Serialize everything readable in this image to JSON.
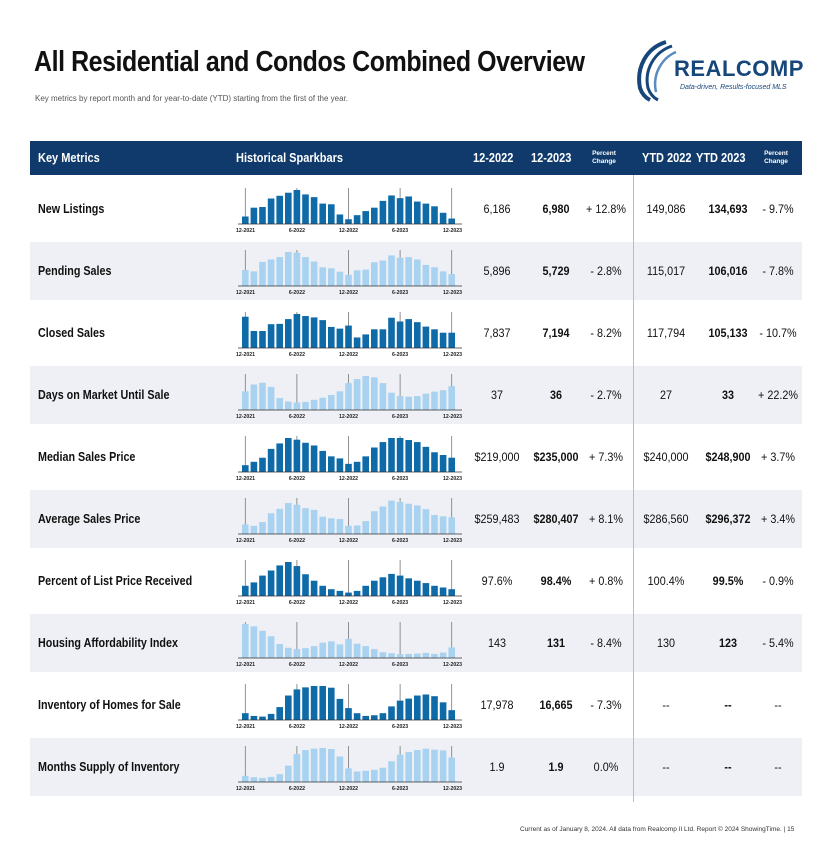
{
  "title": "All Residential and Condos Combined Overview",
  "subtitle": "Key metrics by report month and for year-to-date (YTD) starting from the first of the year.",
  "logo": {
    "word": "REALCOMP",
    "tagline": "Data-driven, Results-focused MLS"
  },
  "header": {
    "key_metrics": "Key Metrics",
    "sparkbars": "Historical Sparkbars",
    "col1": "12-2022",
    "col2": "12-2023",
    "pct1_a": "Percent",
    "pct1_b": "Change",
    "ytd1": "YTD 2022",
    "ytd2": "YTD 2023",
    "pct2_a": "Percent",
    "pct2_b": "Change"
  },
  "tick_labels": [
    "12-2021",
    "6-2022",
    "12-2022",
    "6-2023",
    "12-2023"
  ],
  "colors": {
    "dark_bar": "#0f6aa8",
    "light_bar": "#a8d2f0",
    "header_bg": "#0f3a6b",
    "marker_line": "#777777"
  },
  "rows": [
    {
      "label": "New Listings",
      "v2022": "6,186",
      "v2023": "6,980",
      "pct": "+ 12.8%",
      "ytd2022": "149,086",
      "ytd2023": "134,693",
      "ytd_pct": "- 9.7%",
      "bar_style": "dark",
      "bars": [
        0.22,
        0.48,
        0.5,
        0.75,
        0.83,
        0.92,
        1.0,
        0.87,
        0.79,
        0.6,
        0.58,
        0.28,
        0.14,
        0.26,
        0.38,
        0.48,
        0.68,
        0.84,
        0.76,
        0.81,
        0.66,
        0.6,
        0.52,
        0.33,
        0.16
      ]
    },
    {
      "label": "Pending Sales",
      "v2022": "5,896",
      "v2023": "5,729",
      "pct": "- 2.8%",
      "ytd2022": "115,017",
      "ytd2023": "106,016",
      "ytd_pct": "- 7.8%",
      "bar_style": "light",
      "bars": [
        0.47,
        0.43,
        0.71,
        0.78,
        0.85,
        1.0,
        0.98,
        0.85,
        0.72,
        0.55,
        0.52,
        0.42,
        0.33,
        0.46,
        0.48,
        0.7,
        0.75,
        0.9,
        0.83,
        0.85,
        0.78,
        0.62,
        0.55,
        0.43,
        0.35
      ]
    },
    {
      "label": "Closed Sales",
      "v2022": "7,837",
      "v2023": "7,194",
      "pct": "- 8.2%",
      "ytd2022": "117,794",
      "ytd2023": "105,133",
      "ytd_pct": "- 10.7%",
      "bar_style": "dark",
      "bars": [
        0.92,
        0.5,
        0.5,
        0.7,
        0.71,
        0.85,
        1.0,
        0.94,
        0.9,
        0.82,
        0.62,
        0.57,
        0.66,
        0.31,
        0.4,
        0.55,
        0.55,
        0.89,
        0.78,
        0.85,
        0.76,
        0.63,
        0.55,
        0.45,
        0.45
      ]
    },
    {
      "label": "Days on Market Until Sale",
      "v2022": "37",
      "v2023": "36",
      "pct": "- 2.7%",
      "ytd2022": "27",
      "ytd2023": "33",
      "ytd_pct": "+ 22.2%",
      "bar_style": "light",
      "bars": [
        0.55,
        0.75,
        0.8,
        0.68,
        0.35,
        0.25,
        0.22,
        0.24,
        0.3,
        0.36,
        0.44,
        0.55,
        0.79,
        0.91,
        1.0,
        0.96,
        0.79,
        0.51,
        0.41,
        0.39,
        0.41,
        0.48,
        0.54,
        0.58,
        0.7
      ]
    },
    {
      "label": "Median Sales Price",
      "v2022": "$219,000",
      "v2023": "$235,000",
      "pct": "+ 7.3%",
      "ytd2022": "$240,000",
      "ytd2023": "$248,900",
      "ytd_pct": "+ 3.7%",
      "bar_style": "dark",
      "bars": [
        0.2,
        0.3,
        0.42,
        0.68,
        0.84,
        1.0,
        0.95,
        0.86,
        0.78,
        0.62,
        0.46,
        0.4,
        0.24,
        0.3,
        0.46,
        0.72,
        0.88,
        1.0,
        1.0,
        0.94,
        0.88,
        0.74,
        0.58,
        0.5,
        0.42
      ]
    },
    {
      "label": "Average Sales Price",
      "v2022": "$259,483",
      "v2023": "$280,407",
      "pct": "+ 8.1%",
      "ytd2022": "$286,560",
      "ytd2023": "$296,372",
      "ytd_pct": "+ 3.4%",
      "bar_style": "light",
      "bars": [
        0.28,
        0.24,
        0.35,
        0.61,
        0.74,
        0.91,
        0.86,
        0.76,
        0.71,
        0.51,
        0.46,
        0.44,
        0.24,
        0.25,
        0.38,
        0.67,
        0.81,
        0.98,
        0.94,
        0.89,
        0.84,
        0.73,
        0.56,
        0.52,
        0.49
      ]
    },
    {
      "label": "Percent of List Price Received",
      "v2022": "97.6%",
      "v2023": "98.4%",
      "pct": "+ 0.8%",
      "ytd2022": "100.4%",
      "ytd2023": "99.5%",
      "ytd_pct": "- 0.9%",
      "bar_style": "dark",
      "bars": [
        0.3,
        0.4,
        0.6,
        0.75,
        0.9,
        1.0,
        0.88,
        0.64,
        0.45,
        0.3,
        0.2,
        0.15,
        0.1,
        0.15,
        0.3,
        0.45,
        0.55,
        0.65,
        0.6,
        0.52,
        0.45,
        0.38,
        0.3,
        0.25,
        0.2
      ]
    },
    {
      "label": "Housing Affordability Index",
      "v2022": "143",
      "v2023": "131",
      "pct": "- 8.4%",
      "ytd2022": "130",
      "ytd2023": "123",
      "ytd_pct": "- 5.4%",
      "bar_style": "light",
      "bars": [
        1.0,
        0.93,
        0.8,
        0.64,
        0.41,
        0.3,
        0.26,
        0.29,
        0.35,
        0.45,
        0.49,
        0.4,
        0.56,
        0.42,
        0.35,
        0.26,
        0.17,
        0.14,
        0.11,
        0.12,
        0.13,
        0.15,
        0.12,
        0.16,
        0.31
      ]
    },
    {
      "label": "Inventory of Homes for Sale",
      "v2022": "17,978",
      "v2023": "16,665",
      "pct": "- 7.3%",
      "ytd2022": "--",
      "ytd2023": "--",
      "ytd_pct": "--",
      "bar_style": "dark",
      "bars": [
        0.2,
        0.12,
        0.1,
        0.18,
        0.38,
        0.72,
        0.9,
        0.96,
        1.0,
        1.0,
        0.95,
        0.62,
        0.35,
        0.2,
        0.12,
        0.14,
        0.2,
        0.4,
        0.57,
        0.63,
        0.72,
        0.75,
        0.7,
        0.52,
        0.29
      ]
    },
    {
      "label": "Months Supply of Inventory",
      "v2022": "1.9",
      "v2023": "1.9",
      "pct": "0.0%",
      "ytd2022": "--",
      "ytd2023": "--",
      "ytd_pct": "--",
      "bar_style": "light",
      "bars": [
        0.18,
        0.14,
        0.12,
        0.15,
        0.23,
        0.48,
        0.82,
        0.94,
        0.98,
        1.0,
        0.97,
        0.75,
        0.4,
        0.31,
        0.33,
        0.36,
        0.42,
        0.61,
        0.8,
        0.88,
        0.94,
        0.98,
        0.95,
        0.93,
        0.72
      ]
    }
  ],
  "footer": "Current as of January 8, 2024. All data from Realcomp II Ltd. Report © 2024 ShowingTime. | 15"
}
